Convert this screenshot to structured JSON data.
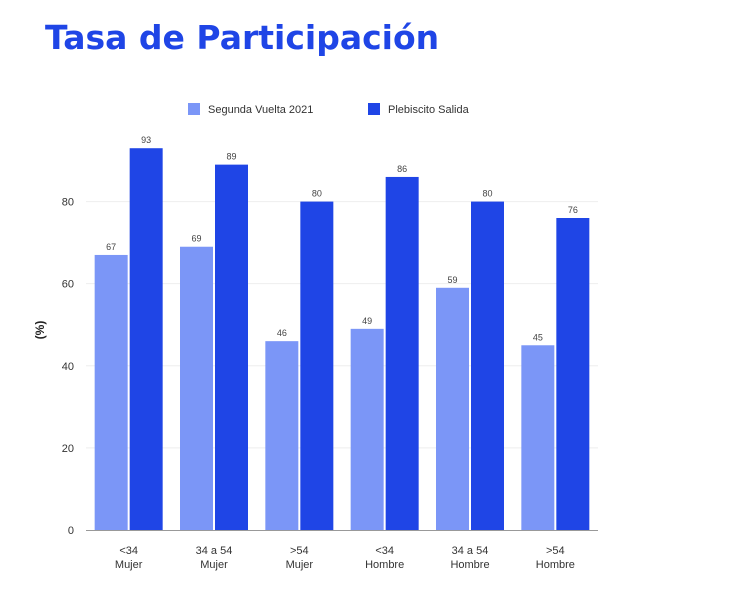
{
  "title": "Tasa de Participación",
  "chart_data": {
    "type": "bar",
    "ylabel": "(%)",
    "xlabel": "",
    "ylim": [
      0,
      95
    ],
    "yticks": [
      0,
      20,
      40,
      60,
      80
    ],
    "grid": true,
    "legend_position": "top",
    "categories": [
      [
        "<34",
        "Mujer"
      ],
      [
        "34 a 54",
        "Mujer"
      ],
      [
        ">54",
        "Mujer"
      ],
      [
        "<34",
        "Hombre"
      ],
      [
        "34 a 54",
        "Hombre"
      ],
      [
        ">54",
        "Hombre"
      ]
    ],
    "series": [
      {
        "name": "Segunda Vuelta 2021",
        "color": "#7b96f7",
        "values": [
          67,
          69,
          46,
          49,
          59,
          45
        ]
      },
      {
        "name": "Plebiscito Salida",
        "color": "#1f45e6",
        "values": [
          93,
          89,
          80,
          86,
          80,
          76
        ]
      }
    ]
  }
}
